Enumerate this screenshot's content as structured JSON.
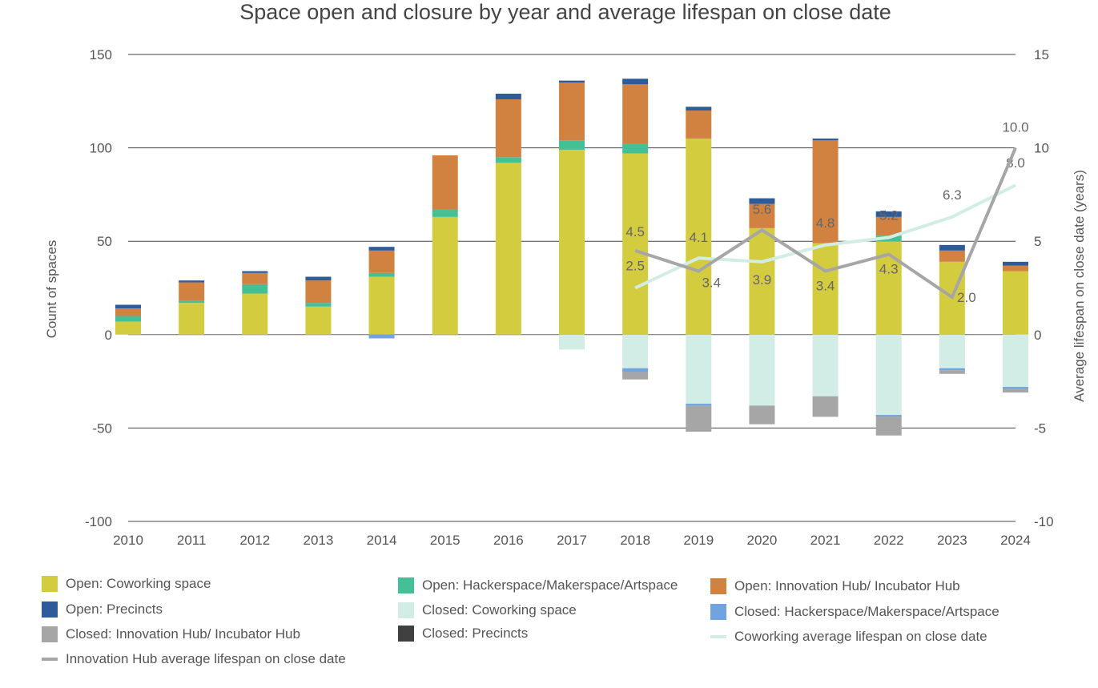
{
  "chart_data": {
    "type": "bar",
    "title": "Space open and closure by year and average lifespan on close date",
    "ylabel": "Count of spaces",
    "y2label": "Average lifespan on close date (years)",
    "ylim": [
      -100,
      150
    ],
    "y2lim": [
      -10,
      15
    ],
    "yticks": [
      150,
      100,
      50,
      0,
      -50,
      -100
    ],
    "y2ticks": [
      15,
      10,
      5,
      0,
      -5,
      -10
    ],
    "categories": [
      "2010",
      "2011",
      "2012",
      "2013",
      "2014",
      "2015",
      "2016",
      "2017",
      "2018",
      "2019",
      "2020",
      "2021",
      "2022",
      "2023",
      "2024"
    ],
    "series": [
      {
        "name": "Open: Coworking space",
        "color": "#d4cc3f",
        "stack": "open",
        "values": [
          7,
          17,
          22,
          15,
          31,
          63,
          92,
          99,
          97,
          105,
          57,
          49,
          50,
          39,
          34
        ]
      },
      {
        "name": "Open: Hackerspace/Makerspace/Artspace",
        "color": "#45bf96",
        "stack": "open",
        "values": [
          3,
          1,
          5,
          2,
          2,
          4,
          3,
          5,
          5,
          0,
          0,
          0,
          3,
          0,
          0
        ]
      },
      {
        "name": "Open: Innovation Hub/ Incubator Hub",
        "color": "#d18240",
        "stack": "open",
        "values": [
          4,
          10,
          6,
          12,
          12,
          29,
          31,
          31,
          32,
          15,
          13,
          55,
          10,
          6,
          3
        ]
      },
      {
        "name": "Open: Precincts",
        "color": "#2e5b9a",
        "stack": "open",
        "values": [
          2,
          1,
          1,
          2,
          2,
          0,
          3,
          1,
          3,
          2,
          3,
          1,
          3,
          3,
          2
        ]
      },
      {
        "name": "Closed: Coworking space",
        "color": "#d2ece6",
        "stack": "closed",
        "values": [
          0,
          0,
          0,
          0,
          0,
          0,
          0,
          -8,
          -18,
          -37,
          -38,
          -33,
          -43,
          -18,
          -28
        ]
      },
      {
        "name": "Closed: Hackerspace/Makerspace/Artspace",
        "color": "#6fa4e0",
        "stack": "closed",
        "values": [
          0,
          0,
          0,
          0,
          -2,
          0,
          0,
          0,
          -2,
          -1,
          0,
          0,
          -1,
          -1,
          -1
        ]
      },
      {
        "name": "Closed: Innovation Hub/ Incubator Hub",
        "color": "#a6a6a6",
        "stack": "closed",
        "values": [
          0,
          0,
          0,
          0,
          0,
          0,
          0,
          0,
          -4,
          -14,
          -10,
          -11,
          -10,
          -2,
          -2
        ]
      },
      {
        "name": "Closed: Precincts",
        "color": "#404040",
        "stack": "closed",
        "values": [
          0,
          0,
          0,
          0,
          0,
          0,
          0,
          0,
          0,
          0,
          0,
          0,
          0,
          0,
          0
        ]
      }
    ],
    "lines": [
      {
        "name": "Coworking average lifespan on close date",
        "color": "#d2ece6",
        "axis": "right",
        "x": [
          "2018",
          "2019",
          "2020",
          "2021",
          "2022",
          "2023",
          "2024"
        ],
        "values": [
          2.5,
          4.1,
          3.9,
          4.8,
          5.2,
          6.3,
          8.0
        ],
        "labels": [
          "2.5",
          "4.1",
          "3.9",
          "4.8",
          "5.2",
          "6.3",
          "8.0"
        ]
      },
      {
        "name": "Innovation Hub average lifespan on close date",
        "color": "#a6a6a6",
        "axis": "right",
        "x": [
          "2018",
          "2019",
          "2020",
          "2021",
          "2022",
          "2023",
          "2024"
        ],
        "values": [
          4.5,
          3.4,
          5.6,
          3.4,
          4.3,
          2.0,
          10.0
        ],
        "labels": [
          "4.5",
          "3.4",
          "5.6",
          "3.4",
          "4.3",
          "2.0",
          "10.0"
        ]
      }
    ],
    "legend": {
      "position": "bottom",
      "items": [
        {
          "label": "Open: Coworking space",
          "color": "#d4cc3f",
          "kind": "box"
        },
        {
          "label": "Open: Hackerspace/Makerspace/Artspace",
          "color": "#45bf96",
          "kind": "box"
        },
        {
          "label": "Open: Innovation Hub/ Incubator Hub",
          "color": "#d18240",
          "kind": "box"
        },
        {
          "label": "Open: Precincts",
          "color": "#2e5b9a",
          "kind": "box"
        },
        {
          "label": "Closed: Coworking space",
          "color": "#d2ece6",
          "kind": "box"
        },
        {
          "label": "Closed: Hackerspace/Makerspace/Artspace",
          "color": "#6fa4e0",
          "kind": "box"
        },
        {
          "label": "Closed: Innovation Hub/ Incubator Hub",
          "color": "#a6a6a6",
          "kind": "box"
        },
        {
          "label": "Closed: Precincts",
          "color": "#404040",
          "kind": "box"
        },
        {
          "label": "Coworking average lifespan on close date",
          "color": "#d2ece6",
          "kind": "line"
        },
        {
          "label": "Innovation Hub average lifespan on close date",
          "color": "#a6a6a6",
          "kind": "line"
        }
      ]
    },
    "grid": true
  }
}
